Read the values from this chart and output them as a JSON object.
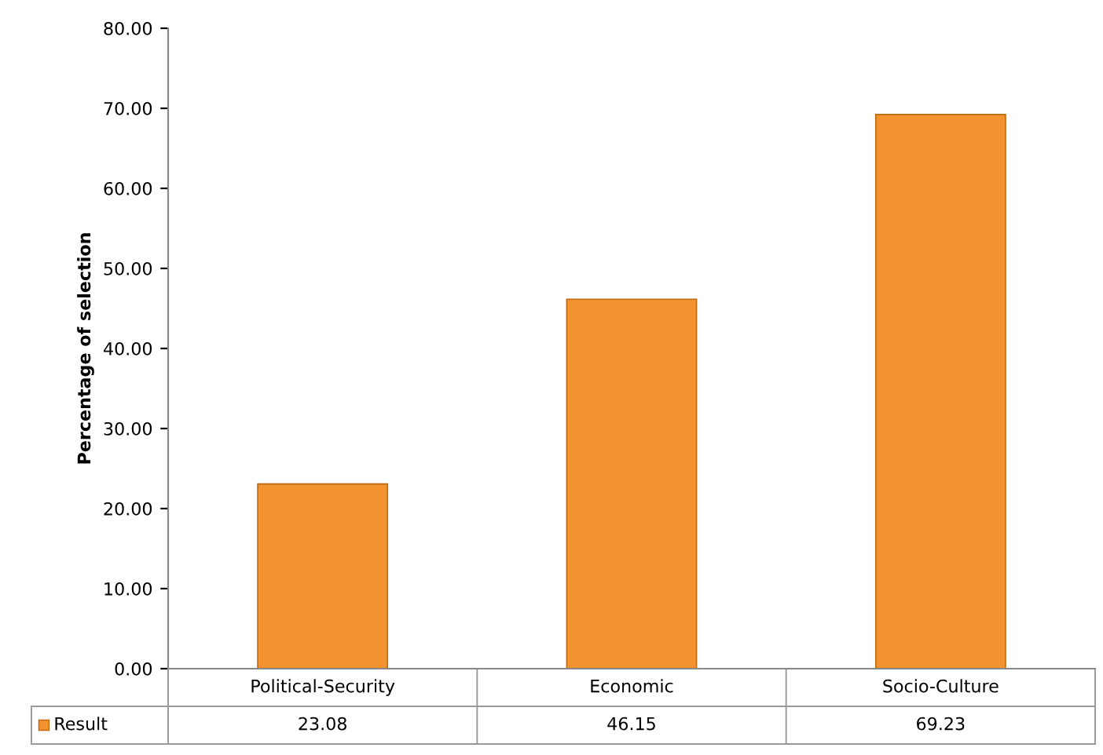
{
  "chart_data": {
    "type": "bar",
    "ylabel": "Percentage of selection",
    "categories": [
      "Political-Security",
      "Economic",
      "Socio-Culture"
    ],
    "series": [
      {
        "name": "Result",
        "color": "#f39330",
        "values": [
          23.08,
          46.15,
          69.23
        ]
      }
    ],
    "ylim": [
      0,
      80
    ],
    "yticks": [
      {
        "value": 0,
        "label": "0.00"
      },
      {
        "value": 10,
        "label": "10.00"
      },
      {
        "value": 20,
        "label": "20.00"
      },
      {
        "value": 30,
        "label": "30.00"
      },
      {
        "value": 40,
        "label": "40.00"
      },
      {
        "value": 50,
        "label": "50.00"
      },
      {
        "value": 60,
        "label": "60.00"
      },
      {
        "value": 70,
        "label": "70.00"
      },
      {
        "value": 80,
        "label": "80.00"
      }
    ],
    "data_labels": true,
    "legend": "bottom",
    "grid": false
  }
}
